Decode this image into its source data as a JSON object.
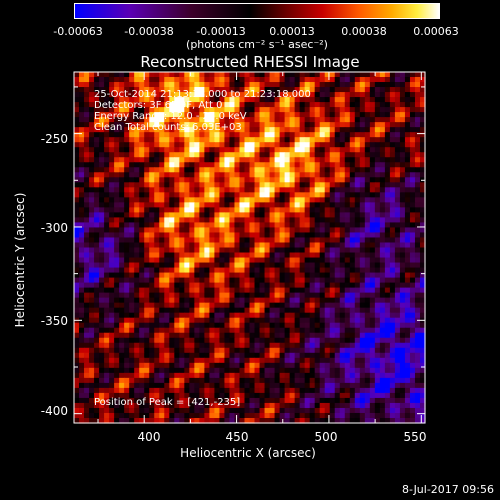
{
  "colorbar": {
    "tick_labels": [
      "-0.00063",
      "-0.00038",
      "-0.00013",
      "0.00013",
      "0.00038",
      "0.00063"
    ],
    "unit": "(photons cm⁻² s⁻¹ asec⁻²)",
    "range": [
      -0.00063,
      0.00063
    ]
  },
  "chart_data": {
    "type": "heatmap",
    "title": "Reconstructed RHESSI Image",
    "xlabel": "Heliocentric X (arcsec)",
    "ylabel": "Heliocentric Y (arcsec)",
    "xlim": [
      362,
      552
    ],
    "ylim": [
      -405,
      -217
    ],
    "x_ticks": [
      "400",
      "450",
      "500",
      "550"
    ],
    "y_ticks": [
      "-250",
      "-300",
      "-350",
      "-400"
    ],
    "peak": [
      421,
      -235
    ],
    "annotations": {
      "time_range": "25-Oct-2014 21:13:18.000 to 21:23:18.000",
      "detectors": "Detectors: 3F 6F 9F, Att 0",
      "energy": "Energy Range: 12.0 - 25.0 keV",
      "method": "Clean     Total counts: 6.03E+03",
      "peak_label": "Position of Peak = [421,-235]"
    }
  },
  "timestamp": "8-Jul-2017 09:56"
}
